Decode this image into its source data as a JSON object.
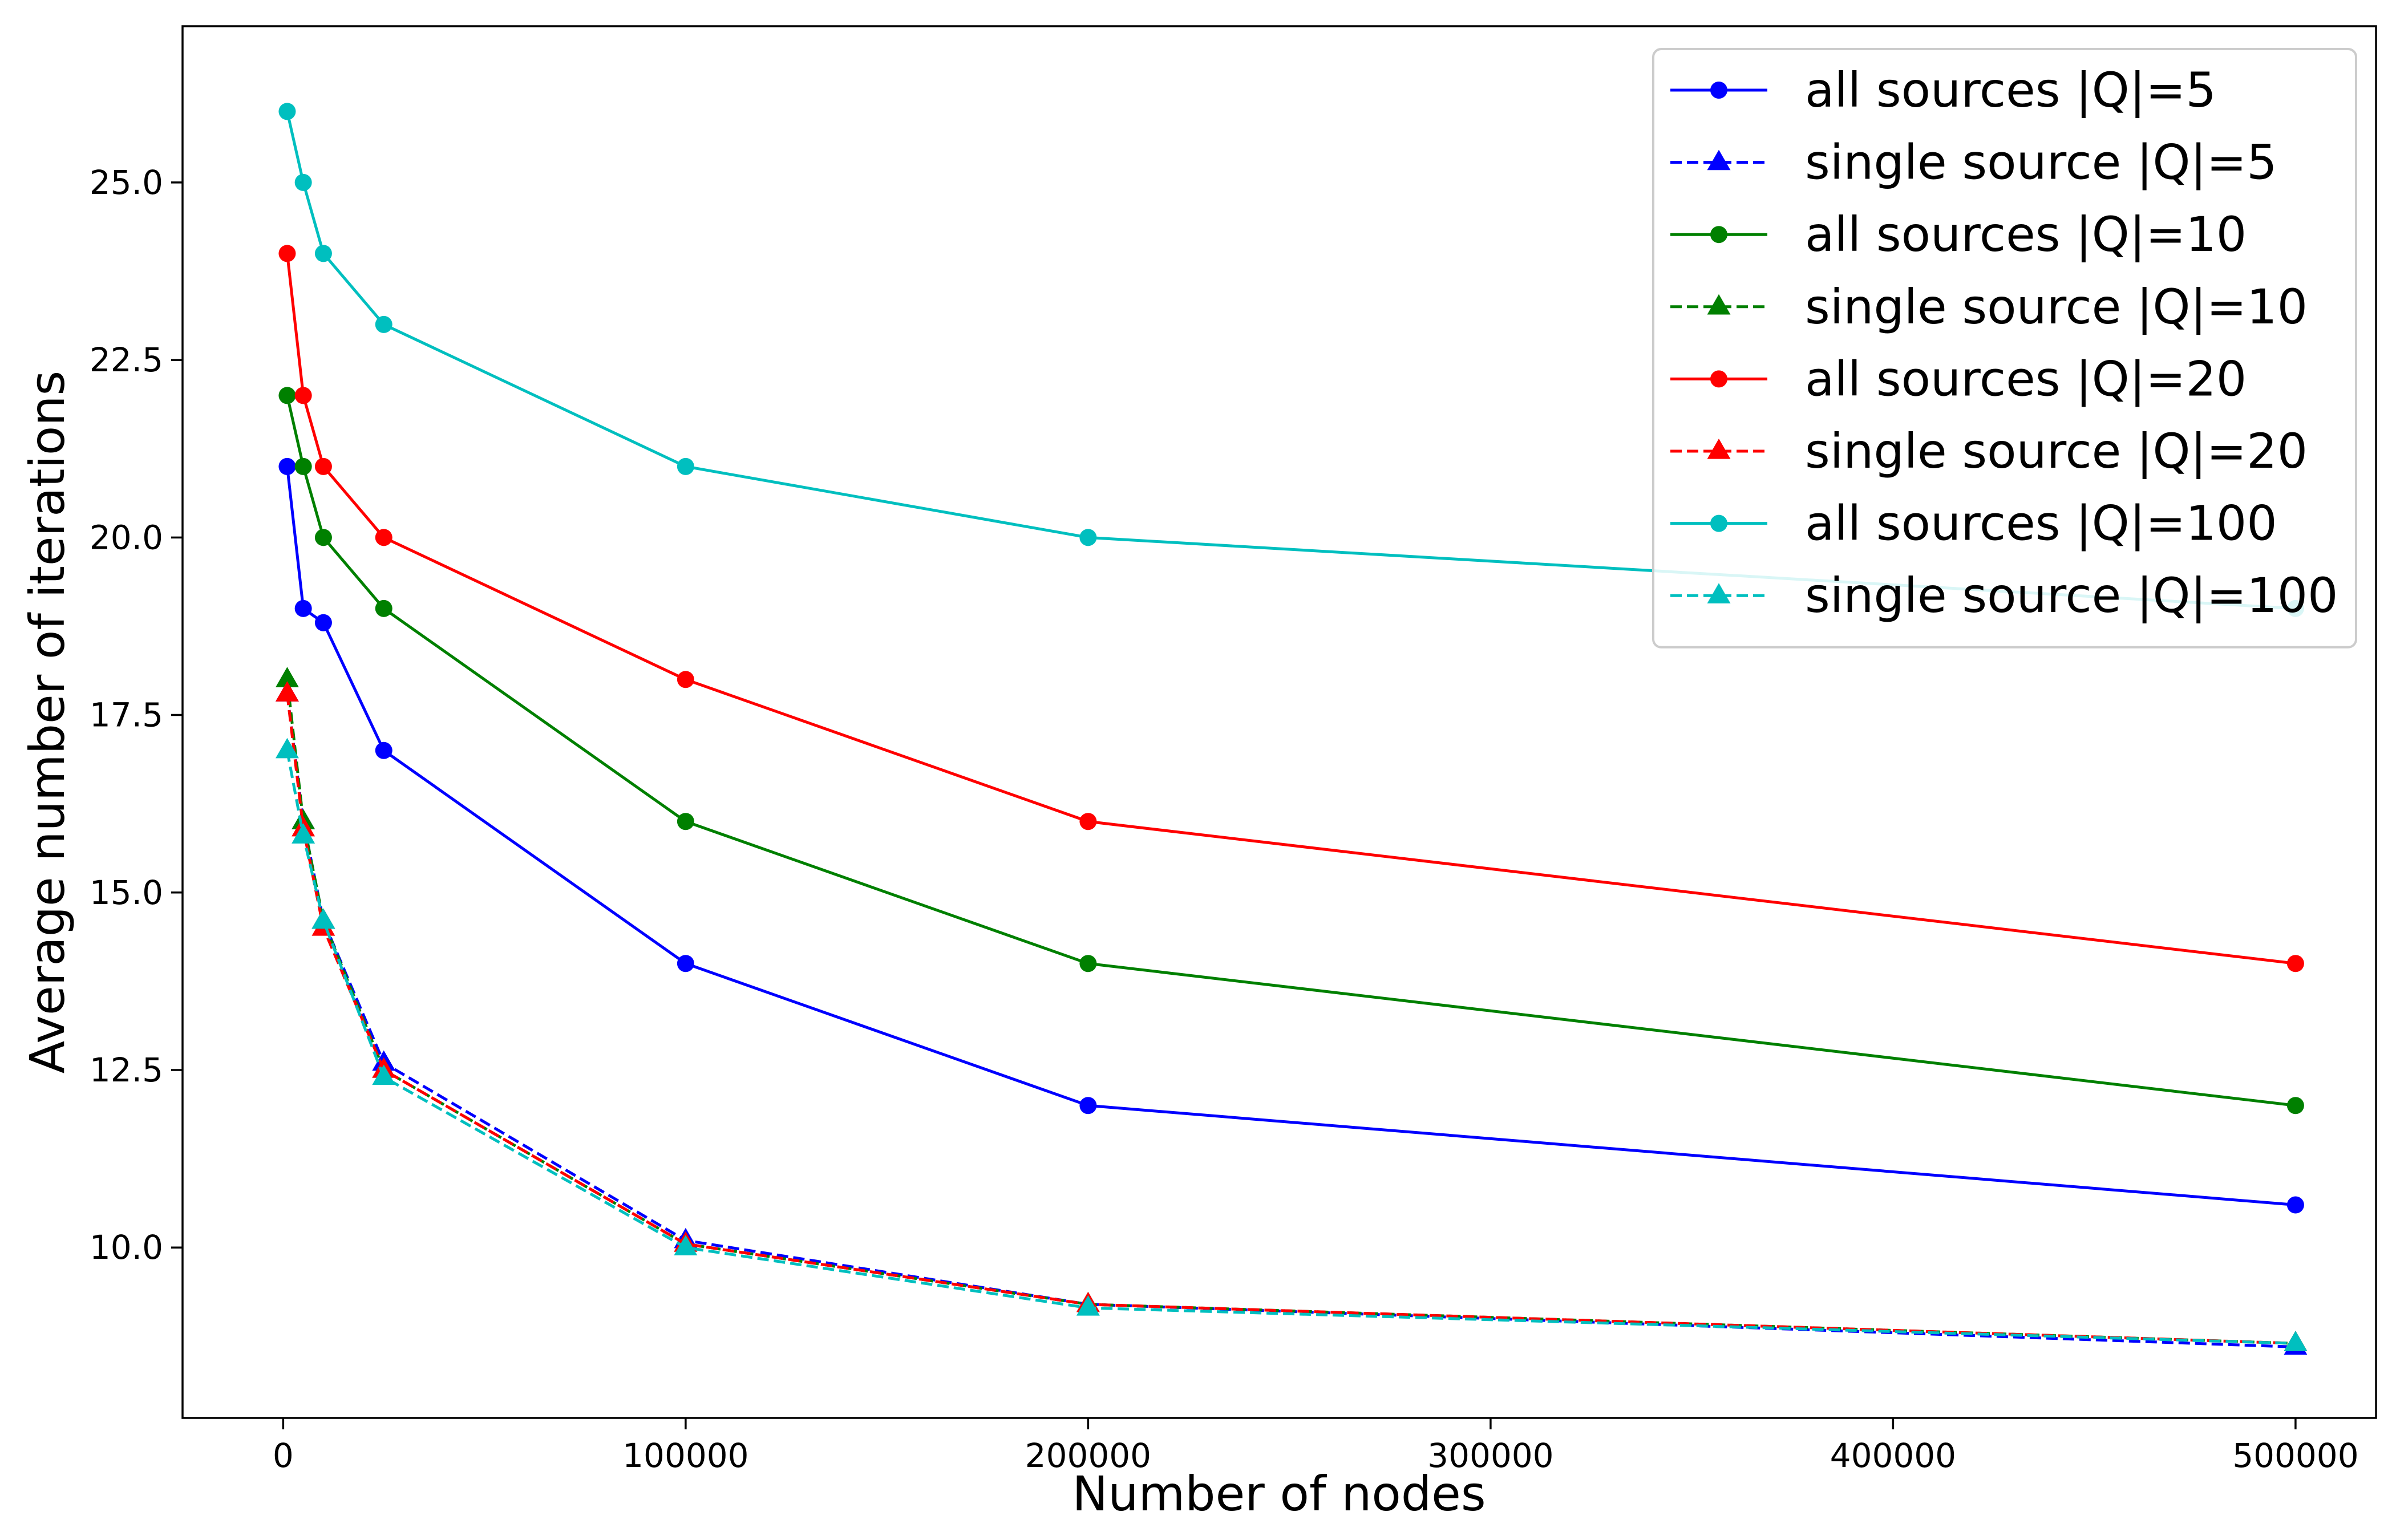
{
  "chart_data": {
    "type": "line",
    "title": "",
    "xlabel": "Number of nodes",
    "ylabel": "Average number of iterations",
    "xlim": [
      -25000,
      520000
    ],
    "ylim": [
      7.6,
      27.2
    ],
    "xticks": [
      0,
      100000,
      200000,
      300000,
      400000,
      500000
    ],
    "xtick_labels": [
      "0",
      "100000",
      "200000",
      "300000",
      "400000",
      "500000"
    ],
    "yticks": [
      10.0,
      12.5,
      15.0,
      17.5,
      20.0,
      22.5,
      25.0
    ],
    "ytick_labels": [
      "10.0",
      "12.5",
      "15.0",
      "17.5",
      "20.0",
      "22.5",
      "25.0"
    ],
    "grid": false,
    "legend_position": "top-right",
    "x": [
      1000,
      5000,
      10000,
      25000,
      100000,
      200000,
      500000
    ],
    "series": [
      {
        "name": "all sources |Q|=5",
        "color": "#0000ff",
        "linestyle": "solid",
        "marker": "circle",
        "values": [
          21.0,
          19.0,
          18.8,
          17.0,
          14.0,
          12.0,
          10.6
        ]
      },
      {
        "name": "single source |Q|=5",
        "color": "#0000ff",
        "linestyle": "dashed",
        "marker": "triangle",
        "values": [
          17.8,
          16.0,
          14.6,
          12.6,
          10.1,
          9.2,
          8.6
        ]
      },
      {
        "name": "all sources |Q|=10",
        "color": "#008000",
        "linestyle": "solid",
        "marker": "circle",
        "values": [
          22.0,
          21.0,
          20.0,
          19.0,
          16.0,
          14.0,
          12.0
        ]
      },
      {
        "name": "single source |Q|=10",
        "color": "#008000",
        "linestyle": "dashed",
        "marker": "triangle",
        "values": [
          18.0,
          16.0,
          14.6,
          12.5,
          10.05,
          9.2,
          8.65
        ]
      },
      {
        "name": "all sources |Q|=20",
        "color": "#ff0000",
        "linestyle": "solid",
        "marker": "circle",
        "values": [
          24.0,
          22.0,
          21.0,
          20.0,
          18.0,
          16.0,
          14.0
        ]
      },
      {
        "name": "single source |Q|=20",
        "color": "#ff0000",
        "linestyle": "dashed",
        "marker": "triangle",
        "values": [
          17.8,
          15.9,
          14.5,
          12.5,
          10.05,
          9.2,
          8.65
        ]
      },
      {
        "name": "all sources |Q|=100",
        "color": "#00bfbf",
        "linestyle": "solid",
        "marker": "circle",
        "values": [
          26.0,
          25.0,
          24.0,
          23.0,
          21.0,
          20.0,
          19.0
        ]
      },
      {
        "name": "single source |Q|=100",
        "color": "#00bfbf",
        "linestyle": "dashed",
        "marker": "triangle",
        "values": [
          17.0,
          15.8,
          14.6,
          12.4,
          10.0,
          9.15,
          8.65
        ]
      }
    ]
  }
}
